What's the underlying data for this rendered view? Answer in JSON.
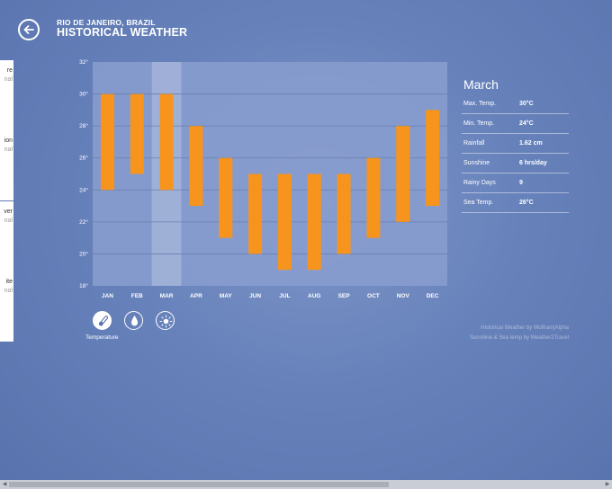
{
  "header": {
    "city": "RIO DE JANEIRO, BRAZIL",
    "title": "HISTORICAL WEATHER"
  },
  "side_cards": [
    {
      "a": "re",
      "b": "nal"
    },
    {
      "a": "ion",
      "b": "nal"
    },
    {
      "a": "ver",
      "b": "nal"
    },
    {
      "a": "ite",
      "b": "nal"
    }
  ],
  "chart_data": {
    "type": "bar",
    "subtype": "floating-range",
    "categories": [
      "JAN",
      "FEB",
      "MAR",
      "APR",
      "MAY",
      "JUN",
      "JUL",
      "AUG",
      "SEP",
      "OCT",
      "NOV",
      "DEC"
    ],
    "ranges": [
      [
        24,
        30
      ],
      [
        25,
        30
      ],
      [
        24,
        30
      ],
      [
        23,
        28
      ],
      [
        21,
        26
      ],
      [
        20,
        25
      ],
      [
        19,
        25
      ],
      [
        19,
        25
      ],
      [
        20,
        25
      ],
      [
        21,
        26
      ],
      [
        22,
        28
      ],
      [
        23,
        29
      ]
    ],
    "ylim": [
      18,
      32
    ],
    "yticks": [
      "18°",
      "20°",
      "22°",
      "24°",
      "26°",
      "28°",
      "30°",
      "32°"
    ],
    "highlighted": "MAR",
    "bar_color": "#f7941d",
    "grid": true
  },
  "buttons": {
    "temperature": {
      "caption": "Temperature",
      "icon": "thermometer-icon"
    },
    "rain": {
      "icon": "water-drop-icon"
    },
    "sun": {
      "icon": "sun-icon"
    }
  },
  "detail": {
    "title": "March",
    "rows": [
      {
        "label": "Max. Temp.",
        "value": "30°C"
      },
      {
        "label": "Min. Temp.",
        "value": "24°C"
      },
      {
        "label": "Rainfall",
        "value": "1.62 cm"
      },
      {
        "label": "Sunshine",
        "value": "6 hrs/day"
      },
      {
        "label": "Rainy Days",
        "value": "9"
      },
      {
        "label": "Sea Temp.",
        "value": "26°C"
      }
    ]
  },
  "credits": {
    "line1": "Historical Weather by Wolfram|Alpha",
    "line2": "Sunshine & Sea temp by Weather2Travel"
  },
  "colors": {
    "background": "#6782bb",
    "plot_area": "#8a9ecf",
    "bar": "#f7941d"
  }
}
